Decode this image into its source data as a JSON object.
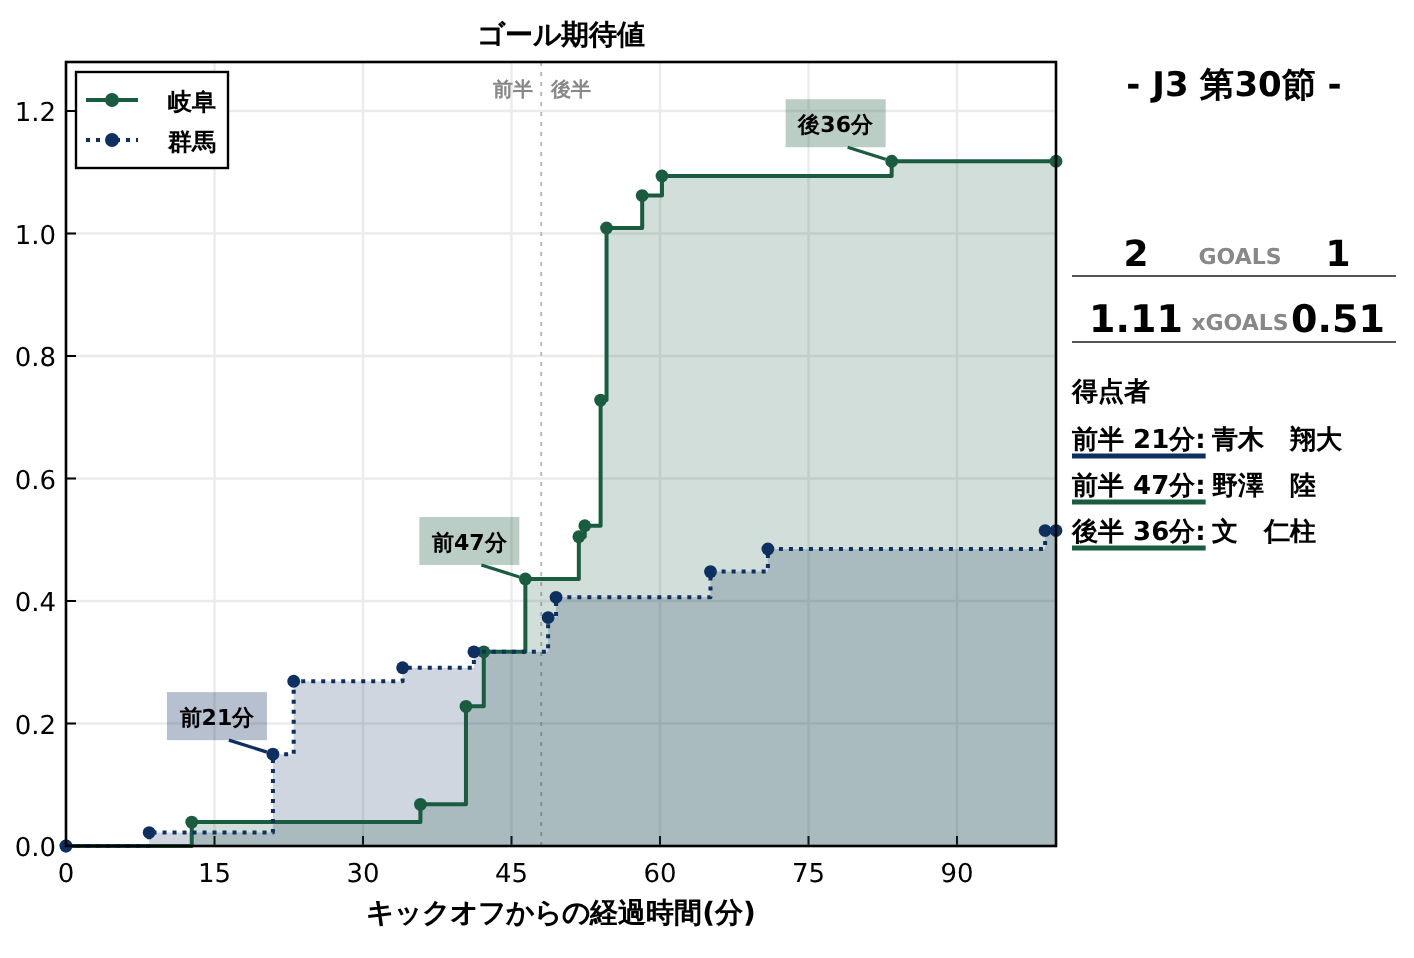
{
  "chart_data": [
    {
      "type": "step",
      "title": "ゴール期待値",
      "xlabel": "キックオフからの経過時間(分)",
      "xlim": [
        0,
        100
      ],
      "ylim": [
        0,
        1.28
      ],
      "xticks": [
        0,
        15,
        30,
        45,
        60,
        75,
        90
      ],
      "yticks": [
        {
          "value": 0,
          "label": "0.0"
        },
        {
          "value": 0.2,
          "label": "0.2"
        },
        {
          "value": 0.4,
          "label": "0.4"
        },
        {
          "value": 0.6,
          "label": "0.6"
        },
        {
          "value": 0.8,
          "label": "0.8"
        },
        {
          "value": 1.0,
          "label": "1.0"
        },
        {
          "value": 1.2,
          "label": "1.2"
        }
      ],
      "grid": true,
      "legend": "top left",
      "marker": "circle",
      "series": [
        {
          "name": "岐阜",
          "color": "#1a5c40",
          "line_style": "solid",
          "x": [
            0,
            12.7,
            35.8,
            40.4,
            42.2,
            46.4,
            51.8,
            52.4,
            54.0,
            54.6,
            58.2,
            60.2,
            83.4,
            100
          ],
          "values": [
            0,
            0.039,
            0.068,
            0.228,
            0.317,
            0.436,
            0.505,
            0.523,
            0.728,
            1.009,
            1.062,
            1.094,
            1.118,
            1.118
          ]
        },
        {
          "name": "群馬",
          "color": "#0d3060",
          "line_style": "dotted",
          "x": [
            0,
            8.4,
            20.9,
            23.0,
            34.0,
            41.2,
            48.7,
            49.5,
            65.1,
            70.9,
            98.9,
            100
          ],
          "values": [
            0,
            0.022,
            0.15,
            0.269,
            0.291,
            0.317,
            0.373,
            0.406,
            0.448,
            0.485,
            0.515,
            0.515
          ]
        }
      ],
      "ref_lines": [
        {
          "axis": "x",
          "value": 48,
          "label": null,
          "color": "#bbbbbb",
          "line_style": "dotted"
        }
      ],
      "annotations": [
        {
          "text": "前半",
          "x": 48
        },
        {
          "text": "後半",
          "x": 48
        },
        {
          "text": "前21分",
          "x": 20.9,
          "y": 0.15
        },
        {
          "text": "前47分",
          "x": 46.4,
          "y": 0.436
        },
        {
          "text": "後36分",
          "x": 83.4,
          "y": 1.118
        }
      ]
    },
    {
      "type": "other",
      "title": "- J3 第30節 -",
      "annotations": [
        "2",
        "GOALS",
        "1",
        "1.11",
        "xGOALS",
        "0.51",
        "得点者",
        "前半 21分:",
        "青木　翔大",
        "前半 47分:",
        "野澤　陸",
        "後半 36分:",
        "文　仁柱"
      ],
      "colors": [
        "#0d3060",
        "#1a5c40",
        "#1a5c40"
      ]
    }
  ]
}
